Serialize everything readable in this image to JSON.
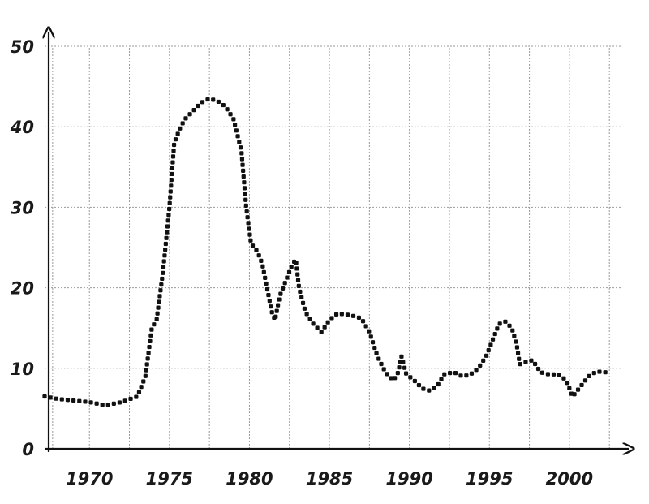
{
  "chart_data": {
    "type": "line",
    "title": "",
    "xlabel": "",
    "ylabel": "",
    "xlim": [
      1967.2,
      2003.2
    ],
    "ylim": [
      0,
      50
    ],
    "grid": true,
    "legend": "none",
    "x_ticks": [
      1970,
      1975,
      1980,
      1985,
      1990,
      1995,
      2000
    ],
    "x_tick_labels": [
      "1970",
      "1975",
      "1980",
      "1985",
      "1990",
      "1995",
      "2000"
    ],
    "x_gridlines": [
      1967.7,
      1970,
      1972.5,
      1975,
      1977.5,
      1980,
      1982.5,
      1985,
      1987.5,
      1990,
      1992.5,
      1995,
      1997.5,
      2000,
      2002.5
    ],
    "y_ticks": [
      0,
      10,
      20,
      30,
      40,
      50
    ],
    "y_tick_labels": [
      "0",
      "10",
      "20",
      "30",
      "40",
      "50"
    ],
    "y_gridlines": [
      10,
      20,
      30,
      40,
      50
    ],
    "series": [
      {
        "color": "#111111",
        "style": "dotted",
        "points": [
          [
            1967.2,
            6.5
          ],
          [
            1968,
            6.2
          ],
          [
            1969,
            6.0
          ],
          [
            1970,
            5.8
          ],
          [
            1971,
            5.4
          ],
          [
            1972,
            5.8
          ],
          [
            1973,
            6.5
          ],
          [
            1973.5,
            9
          ],
          [
            1973.9,
            15
          ],
          [
            1974.2,
            16
          ],
          [
            1974.6,
            22
          ],
          [
            1975,
            30
          ],
          [
            1975.3,
            38
          ],
          [
            1975.7,
            40
          ],
          [
            1976,
            41
          ],
          [
            1976.5,
            42
          ],
          [
            1977,
            43
          ],
          [
            1977.5,
            43.5
          ],
          [
            1978,
            43.2
          ],
          [
            1978.5,
            42.5
          ],
          [
            1979,
            41
          ],
          [
            1979.5,
            37
          ],
          [
            1979.8,
            30
          ],
          [
            1980.1,
            25.5
          ],
          [
            1980.5,
            24.5
          ],
          [
            1980.8,
            23
          ],
          [
            1981.1,
            20
          ],
          [
            1981.4,
            17
          ],
          [
            1981.6,
            16
          ],
          [
            1981.9,
            19
          ],
          [
            1982.3,
            21
          ],
          [
            1982.7,
            23
          ],
          [
            1982.9,
            23.5
          ],
          [
            1983.1,
            20
          ],
          [
            1983.5,
            17
          ],
          [
            1984,
            15.5
          ],
          [
            1984.5,
            14.5
          ],
          [
            1985,
            16
          ],
          [
            1985.5,
            16.8
          ],
          [
            1986,
            16.7
          ],
          [
            1986.5,
            16.5
          ],
          [
            1987,
            16.2
          ],
          [
            1987.5,
            14.5
          ],
          [
            1988,
            11.5
          ],
          [
            1988.5,
            9.5
          ],
          [
            1989,
            8.5
          ],
          [
            1989.3,
            9.5
          ],
          [
            1989.5,
            11.5
          ],
          [
            1989.8,
            9.3
          ],
          [
            1990.3,
            8.5
          ],
          [
            1990.8,
            7.5
          ],
          [
            1991.3,
            7.2
          ],
          [
            1991.8,
            8
          ],
          [
            1992.2,
            9.3
          ],
          [
            1992.8,
            9.5
          ],
          [
            1993.3,
            9
          ],
          [
            1993.8,
            9.2
          ],
          [
            1994.3,
            10
          ],
          [
            1994.8,
            11.5
          ],
          [
            1995.2,
            13.5
          ],
          [
            1995.6,
            15.5
          ],
          [
            1996,
            15.8
          ],
          [
            1996.4,
            15
          ],
          [
            1996.7,
            13
          ],
          [
            1996.9,
            10.5
          ],
          [
            1997.3,
            10.8
          ],
          [
            1997.7,
            11
          ],
          [
            1998.2,
            9.5
          ],
          [
            1998.8,
            9.2
          ],
          [
            1999.3,
            9.3
          ],
          [
            1999.8,
            8.5
          ],
          [
            2000.2,
            6.5
          ],
          [
            2000.6,
            7.5
          ],
          [
            2001.2,
            9
          ],
          [
            2001.7,
            9.6
          ],
          [
            2002.3,
            9.5
          ]
        ]
      }
    ]
  }
}
